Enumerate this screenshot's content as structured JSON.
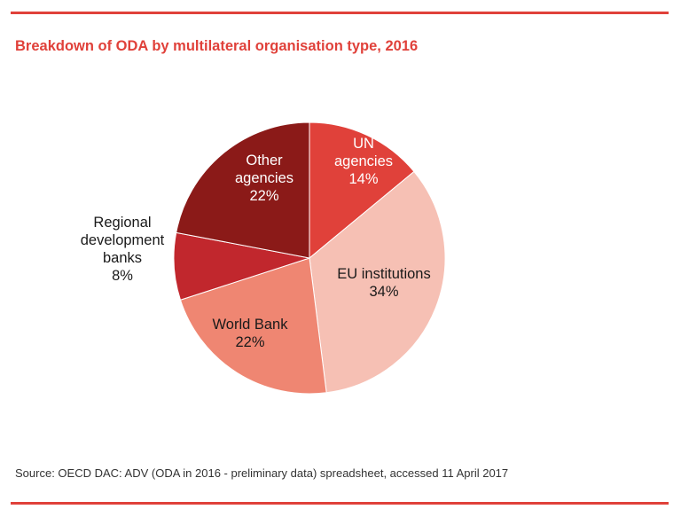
{
  "page": {
    "title": "Breakdown of ODA by multilateral organisation type, 2016",
    "source": "Source: OECD DAC: ADV (ODA in 2016 - preliminary data) spreadsheet, accessed 11 April 2017",
    "rule_color": "#e0413a"
  },
  "chart_data": {
    "type": "pie",
    "title": "Breakdown of ODA by multilateral organisation type, 2016",
    "slices": [
      {
        "label": "UN agencies",
        "value": 14,
        "value_label": "14%",
        "color": "#e0413a",
        "label_color": "#ffffff",
        "lines": [
          "UN",
          "agencies",
          "14%"
        ]
      },
      {
        "label": "EU institutions",
        "value": 34,
        "value_label": "34%",
        "color": "#f6c0b4",
        "label_color": "#1a1a1a",
        "lines": [
          "EU institutions",
          "34%"
        ]
      },
      {
        "label": "World Bank",
        "value": 22,
        "value_label": "22%",
        "color": "#ef8672",
        "label_color": "#1a1a1a",
        "lines": [
          "World Bank",
          "22%"
        ]
      },
      {
        "label": "Regional development banks",
        "value": 8,
        "value_label": "8%",
        "color": "#c1272d",
        "label_color": "#1a1a1a",
        "lines": [
          "Regional",
          "development",
          "banks",
          "8%"
        ]
      },
      {
        "label": "Other agencies",
        "value": 22,
        "value_label": "22%",
        "color": "#8b1a18",
        "label_color": "#ffffff",
        "lines": [
          "Other",
          "agencies",
          "22%"
        ]
      }
    ],
    "start_angle_deg": 0,
    "direction": "clockwise",
    "legend": "none"
  }
}
